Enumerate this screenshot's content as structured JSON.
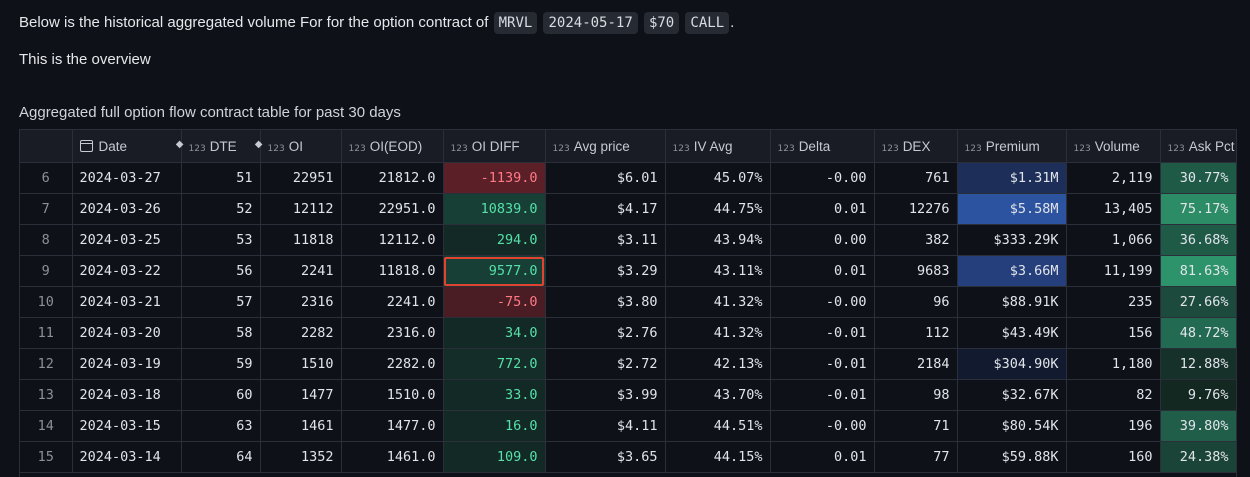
{
  "intro": {
    "prefix": "Below is the historical aggregated volume For for the option contract of",
    "ticker": "MRVL",
    "expiry": "2024-05-17",
    "strike": "$70",
    "type": "CALL",
    "suffix": "."
  },
  "overview": "This is the overview",
  "caption": "Aggregated full option flow contract table for past 30 days",
  "type_badge": "123",
  "columns": [
    "",
    "Date",
    "DTE",
    "OI",
    "OI(EOD)",
    "OI DIFF",
    "Avg price",
    "IV Avg",
    "Delta",
    "DEX",
    "Premium",
    "Volume",
    "Ask Pct"
  ],
  "rows": [
    {
      "idx": "6",
      "date": "2024-03-27",
      "dte": "51",
      "oi": "22951",
      "oi_eod": "21812.0",
      "oi_diff": "-1139.0",
      "avg_price": "$6.01",
      "iv_avg": "45.07%",
      "delta": "-0.00",
      "dex": "761",
      "premium": "$1.31M",
      "volume": "2,119",
      "ask_pct": "30.77%",
      "diff_bg": "#5a1f27",
      "diff_fg": "#ff7a85",
      "prem_bg": "#1d2f58",
      "ask_bg": "#1f5a47"
    },
    {
      "idx": "7",
      "date": "2024-03-26",
      "dte": "52",
      "oi": "12112",
      "oi_eod": "22951.0",
      "oi_diff": "10839.0",
      "avg_price": "$4.17",
      "iv_avg": "44.75%",
      "delta": "0.01",
      "dex": "12276",
      "premium": "$5.58M",
      "volume": "13,405",
      "ask_pct": "75.17%",
      "diff_bg": "#173f36",
      "diff_fg": "#56e0a8",
      "prem_bg": "#2b53a0",
      "ask_bg": "#2b8c66"
    },
    {
      "idx": "8",
      "date": "2024-03-25",
      "dte": "53",
      "oi": "11818",
      "oi_eod": "12112.0",
      "oi_diff": "294.0",
      "avg_price": "$3.11",
      "iv_avg": "43.94%",
      "delta": "0.00",
      "dex": "382",
      "premium": "$333.29K",
      "volume": "1,066",
      "ask_pct": "36.68%",
      "diff_bg": "#122925",
      "diff_fg": "#56e0a8",
      "prem_bg": "#0e1117",
      "ask_bg": "#1f5a47"
    },
    {
      "idx": "9",
      "date": "2024-03-22",
      "dte": "56",
      "oi": "2241",
      "oi_eod": "11818.0",
      "oi_diff": "9577.0",
      "avg_price": "$3.29",
      "iv_avg": "43.11%",
      "delta": "0.01",
      "dex": "9683",
      "premium": "$3.66M",
      "volume": "11,199",
      "ask_pct": "81.63%",
      "diff_bg": "#173f36",
      "diff_fg": "#56e0a8",
      "prem_bg": "#243f7c",
      "ask_bg": "#2d936b"
    },
    {
      "idx": "10",
      "date": "2024-03-21",
      "dte": "57",
      "oi": "2316",
      "oi_eod": "2241.0",
      "oi_diff": "-75.0",
      "avg_price": "$3.80",
      "iv_avg": "41.32%",
      "delta": "-0.00",
      "dex": "96",
      "premium": "$88.91K",
      "volume": "235",
      "ask_pct": "27.66%",
      "diff_bg": "#4a1c24",
      "diff_fg": "#ff7a85",
      "prem_bg": "#0e1117",
      "ask_bg": "#1c4a3c"
    },
    {
      "idx": "11",
      "date": "2024-03-20",
      "dte": "58",
      "oi": "2282",
      "oi_eod": "2316.0",
      "oi_diff": "34.0",
      "avg_price": "$2.76",
      "iv_avg": "41.32%",
      "delta": "-0.01",
      "dex": "112",
      "premium": "$43.49K",
      "volume": "156",
      "ask_pct": "48.72%",
      "diff_bg": "#122925",
      "diff_fg": "#56e0a8",
      "prem_bg": "#0e1117",
      "ask_bg": "#236a52"
    },
    {
      "idx": "12",
      "date": "2024-03-19",
      "dte": "59",
      "oi": "1510",
      "oi_eod": "2282.0",
      "oi_diff": "772.0",
      "avg_price": "$2.72",
      "iv_avg": "42.13%",
      "delta": "-0.01",
      "dex": "2184",
      "premium": "$304.90K",
      "volume": "1,180",
      "ask_pct": "12.88%",
      "diff_bg": "#142d28",
      "diff_fg": "#56e0a8",
      "prem_bg": "#111a2e",
      "ask_bg": "#16302a"
    },
    {
      "idx": "13",
      "date": "2024-03-18",
      "dte": "60",
      "oi": "1477",
      "oi_eod": "1510.0",
      "oi_diff": "33.0",
      "avg_price": "$3.99",
      "iv_avg": "43.70%",
      "delta": "-0.01",
      "dex": "98",
      "premium": "$32.67K",
      "volume": "82",
      "ask_pct": "9.76%",
      "diff_bg": "#122925",
      "diff_fg": "#56e0a8",
      "prem_bg": "#0e1117",
      "ask_bg": "#142822"
    },
    {
      "idx": "14",
      "date": "2024-03-15",
      "dte": "63",
      "oi": "1461",
      "oi_eod": "1477.0",
      "oi_diff": "16.0",
      "avg_price": "$4.11",
      "iv_avg": "44.51%",
      "delta": "-0.00",
      "dex": "71",
      "premium": "$80.54K",
      "volume": "196",
      "ask_pct": "39.80%",
      "diff_bg": "#122925",
      "diff_fg": "#56e0a8",
      "prem_bg": "#0e1117",
      "ask_bg": "#205e4a"
    },
    {
      "idx": "15",
      "date": "2024-03-14",
      "dte": "64",
      "oi": "1352",
      "oi_eod": "1461.0",
      "oi_diff": "109.0",
      "avg_price": "$3.65",
      "iv_avg": "44.15%",
      "delta": "0.01",
      "dex": "77",
      "premium": "$59.88K",
      "volume": "160",
      "ask_pct": "24.38%",
      "diff_bg": "#122925",
      "diff_fg": "#56e0a8",
      "prem_bg": "#0e1117",
      "ask_bg": "#1b4438"
    }
  ],
  "highlighted_row": "9"
}
